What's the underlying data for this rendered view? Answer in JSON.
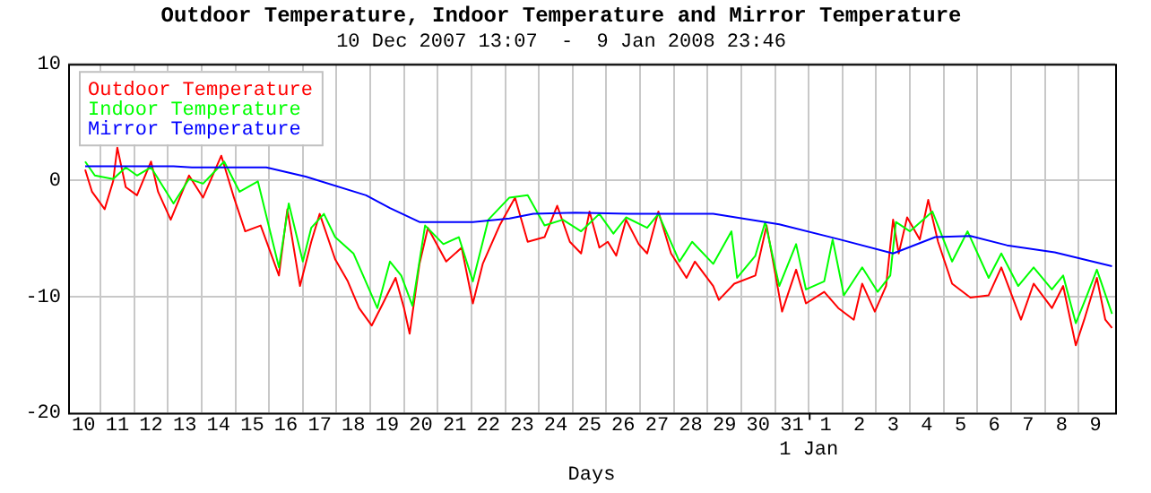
{
  "chart_data": {
    "type": "line",
    "title": "Outdoor Temperature, Indoor Temperature and Mirror Temperature",
    "subtitle": "10 Dec 2007 13:07  -  9 Jan 2008 23:46",
    "xlabel": "Days",
    "xlim": [
      "2007-12-10T01:00",
      "2008-01-10T02:00"
    ],
    "ylim": [
      -20,
      10
    ],
    "yticks": [
      -20,
      -10,
      0,
      10
    ],
    "xticks": [
      {
        "value": "2007-12-10T12:00",
        "label": "10"
      },
      {
        "value": "2007-12-11T12:00",
        "label": "11"
      },
      {
        "value": "2007-12-12T12:00",
        "label": "12"
      },
      {
        "value": "2007-12-13T12:00",
        "label": "13"
      },
      {
        "value": "2007-12-14T12:00",
        "label": "14"
      },
      {
        "value": "2007-12-15T12:00",
        "label": "15"
      },
      {
        "value": "2007-12-16T12:00",
        "label": "16"
      },
      {
        "value": "2007-12-17T12:00",
        "label": "17"
      },
      {
        "value": "2007-12-18T12:00",
        "label": "18"
      },
      {
        "value": "2007-12-19T12:00",
        "label": "19"
      },
      {
        "value": "2007-12-20T12:00",
        "label": "20"
      },
      {
        "value": "2007-12-21T12:00",
        "label": "21"
      },
      {
        "value": "2007-12-22T12:00",
        "label": "22"
      },
      {
        "value": "2007-12-23T12:00",
        "label": "23"
      },
      {
        "value": "2007-12-24T12:00",
        "label": "24"
      },
      {
        "value": "2007-12-25T12:00",
        "label": "25"
      },
      {
        "value": "2007-12-26T12:00",
        "label": "26"
      },
      {
        "value": "2007-12-27T12:00",
        "label": "27"
      },
      {
        "value": "2007-12-28T12:00",
        "label": "28"
      },
      {
        "value": "2007-12-29T12:00",
        "label": "29"
      },
      {
        "value": "2007-12-30T12:00",
        "label": "30"
      },
      {
        "value": "2007-12-31T12:00",
        "label": "31"
      },
      {
        "value": "2008-01-01T12:00",
        "label": "1"
      },
      {
        "value": "2008-01-02T12:00",
        "label": "2"
      },
      {
        "value": "2008-01-03T12:00",
        "label": "3"
      },
      {
        "value": "2008-01-04T12:00",
        "label": "4"
      },
      {
        "value": "2008-01-05T12:00",
        "label": "5"
      },
      {
        "value": "2008-01-06T12:00",
        "label": "6"
      },
      {
        "value": "2008-01-07T12:00",
        "label": "7"
      },
      {
        "value": "2008-01-08T12:00",
        "label": "8"
      },
      {
        "value": "2008-01-09T12:00",
        "label": "9"
      },
      {
        "value": "2007-12-11",
        "label": null
      },
      {
        "value": "2007-12-12",
        "label": null
      },
      {
        "value": "2007-12-13",
        "label": null
      },
      {
        "value": "2007-12-14",
        "label": null
      },
      {
        "value": "2007-12-15",
        "label": null
      },
      {
        "value": "2007-12-16",
        "label": null
      },
      {
        "value": "2007-12-17",
        "label": null
      },
      {
        "value": "2007-12-18",
        "label": null
      },
      {
        "value": "2007-12-19",
        "label": null
      },
      {
        "value": "2007-12-20",
        "label": null
      },
      {
        "value": "2007-12-21",
        "label": null
      },
      {
        "value": "2007-12-22",
        "label": null
      },
      {
        "value": "2007-12-23",
        "label": null
      },
      {
        "value": "2007-12-24",
        "label": null
      },
      {
        "value": "2007-12-25",
        "label": null
      },
      {
        "value": "2007-12-26",
        "label": null
      },
      {
        "value": "2007-12-27",
        "label": null
      },
      {
        "value": "2007-12-28",
        "label": null
      },
      {
        "value": "2007-12-29",
        "label": null
      },
      {
        "value": "2007-12-30",
        "label": null
      },
      {
        "value": "2007-12-31",
        "label": null
      },
      {
        "value": "2008-01-01",
        "label": null
      },
      {
        "value": "2008-01-02",
        "label": null
      },
      {
        "value": "2008-01-03",
        "label": null
      },
      {
        "value": "2008-01-04",
        "label": null
      },
      {
        "value": "2008-01-05",
        "label": null
      },
      {
        "value": "2008-01-06",
        "label": null
      },
      {
        "value": "2008-01-07",
        "label": null
      },
      {
        "value": "2008-01-08",
        "label": null
      },
      {
        "value": "2008-01-09",
        "label": null
      }
    ],
    "grid": true,
    "legend": "top left",
    "annotations": [
      "1 Jan"
    ],
    "series": [
      {
        "name": "Outdoor Temperature",
        "color": "#ff0000",
        "x": [
          "2007-12-10T13:07",
          "2007-12-10T18:00",
          "2007-12-11T03:00",
          "2007-12-11T09:00",
          "2007-12-11T12:00",
          "2007-12-11T18:00",
          "2007-12-12T02:00",
          "2007-12-12T12:00",
          "2007-12-12T17:00",
          "2007-12-13T02:00",
          "2007-12-13T15:00",
          "2007-12-14T01:00",
          "2007-12-14T14:00",
          "2007-12-14T23:00",
          "2007-12-15T07:00",
          "2007-12-15T18:00",
          "2007-12-16T07:00",
          "2007-12-16T13:00",
          "2007-12-16T22:00",
          "2007-12-17T06:00",
          "2007-12-17T12:00",
          "2007-12-17T23:00",
          "2007-12-18T08:00",
          "2007-12-18T16:00",
          "2007-12-19T01:00",
          "2007-12-19T09:00",
          "2007-12-19T18:00",
          "2007-12-20T00:00",
          "2007-12-20T04:00",
          "2007-12-20T11:00",
          "2007-12-20T17:00",
          "2007-12-21T06:00",
          "2007-12-21T17:00",
          "2007-12-22T01:00",
          "2007-12-22T08:00",
          "2007-12-22T20:00",
          "2007-12-23T07:00",
          "2007-12-23T16:00",
          "2007-12-24T04:00",
          "2007-12-24T13:00",
          "2007-12-24T22:00",
          "2007-12-25T06:00",
          "2007-12-25T12:00",
          "2007-12-25T19:00",
          "2007-12-26T01:00",
          "2007-12-26T07:00",
          "2007-12-26T14:00",
          "2007-12-26T23:00",
          "2007-12-27T05:00",
          "2007-12-27T13:00",
          "2007-12-27T22:00",
          "2007-12-28T09:00",
          "2007-12-28T15:00",
          "2007-12-29T04:00",
          "2007-12-29T08:00",
          "2007-12-29T19:00",
          "2007-12-30T10:00",
          "2007-12-30T18:00",
          "2007-12-31T05:00",
          "2007-12-31T15:00",
          "2007-12-31T22:00",
          "2008-01-01T11:00",
          "2008-01-01T21:00",
          "2008-01-02T08:00",
          "2008-01-02T14:00",
          "2008-01-02T23:00",
          "2008-01-03T07:00",
          "2008-01-03T12:00",
          "2008-01-03T16:00",
          "2008-01-03T22:00",
          "2008-01-04T07:00",
          "2008-01-04T13:00",
          "2008-01-04T20:00",
          "2008-01-05T06:00",
          "2008-01-05T19:00",
          "2008-01-06T08:00",
          "2008-01-06T17:00",
          "2008-01-07T07:00",
          "2008-01-07T16:00",
          "2008-01-08T05:00",
          "2008-01-08T13:00",
          "2008-01-08T22:00",
          "2008-01-09T04:00",
          "2008-01-09T13:00",
          "2008-01-09T19:00",
          "2008-01-09T23:46"
        ],
        "values": [
          0.9,
          -1.0,
          -2.5,
          -0.1,
          2.8,
          -0.6,
          -1.3,
          1.6,
          -1.0,
          -3.4,
          0.4,
          -1.5,
          2.1,
          -1.5,
          -4.4,
          -3.9,
          -8.2,
          -2.5,
          -9.1,
          -5.3,
          -2.9,
          -6.8,
          -8.7,
          -11.0,
          -12.5,
          -10.6,
          -8.4,
          -11.0,
          -13.2,
          -7.2,
          -4.1,
          -7.0,
          -5.8,
          -10.6,
          -7.2,
          -3.9,
          -1.5,
          -5.3,
          -4.9,
          -2.2,
          -5.3,
          -6.3,
          -2.7,
          -5.8,
          -5.3,
          -6.5,
          -3.4,
          -5.5,
          -6.3,
          -2.7,
          -6.3,
          -8.4,
          -7.0,
          -9.1,
          -10.3,
          -8.9,
          -8.2,
          -3.9,
          -11.3,
          -7.7,
          -10.6,
          -9.6,
          -11.0,
          -12.0,
          -8.9,
          -11.3,
          -9.1,
          -3.4,
          -6.3,
          -3.2,
          -5.1,
          -1.7,
          -5.3,
          -8.9,
          -10.1,
          -9.9,
          -7.5,
          -12.0,
          -8.9,
          -11.0,
          -9.1,
          -14.2,
          -12.0,
          -8.4,
          -12.0,
          -12.7
        ]
      },
      {
        "name": "Indoor Temperature",
        "color": "#00ff00",
        "x": [
          "2007-12-10T13:07",
          "2007-12-10T20:00",
          "2007-12-11T09:00",
          "2007-12-11T18:00",
          "2007-12-12T02:00",
          "2007-12-12T12:00",
          "2007-12-13T04:00",
          "2007-12-13T15:00",
          "2007-12-14T01:00",
          "2007-12-14T16:00",
          "2007-12-15T03:00",
          "2007-12-15T16:00",
          "2007-12-16T07:00",
          "2007-12-16T14:00",
          "2007-12-17T00:00",
          "2007-12-17T06:00",
          "2007-12-17T15:00",
          "2007-12-17T23:00",
          "2007-12-18T12:00",
          "2007-12-19T05:00",
          "2007-12-19T14:00",
          "2007-12-19T22:00",
          "2007-12-20T06:00",
          "2007-12-20T15:00",
          "2007-12-21T04:00",
          "2007-12-21T15:00",
          "2007-12-22T01:00",
          "2007-12-22T12:00",
          "2007-12-23T03:00",
          "2007-12-23T16:00",
          "2007-12-24T04:00",
          "2007-12-24T17:00",
          "2007-12-25T06:00",
          "2007-12-25T19:00",
          "2007-12-26T05:00",
          "2007-12-26T14:00",
          "2007-12-27T05:00",
          "2007-12-27T13:00",
          "2007-12-28T04:00",
          "2007-12-28T13:00",
          "2007-12-29T04:00",
          "2007-12-29T17:00",
          "2007-12-29T21:00",
          "2007-12-30T10:00",
          "2007-12-30T17:00",
          "2007-12-31T03:00",
          "2007-12-31T15:00",
          "2007-12-31T22:00",
          "2008-01-01T11:00",
          "2008-01-01T17:00",
          "2008-01-02T01:00",
          "2008-01-02T14:00",
          "2008-01-03T01:00",
          "2008-01-03T10:00",
          "2008-01-03T14:00",
          "2008-01-04T00:00",
          "2008-01-04T16:00",
          "2008-01-05T06:00",
          "2008-01-05T17:00",
          "2008-01-06T08:00",
          "2008-01-06T17:00",
          "2008-01-07T05:00",
          "2008-01-07T16:00",
          "2008-01-08T05:00",
          "2008-01-08T13:00",
          "2008-01-08T22:00",
          "2008-01-09T06:00",
          "2008-01-09T13:00",
          "2008-01-09T23:46"
        ],
        "values": [
          1.6,
          0.4,
          0.1,
          1.1,
          0.4,
          1.1,
          -2.0,
          0.1,
          -0.3,
          1.6,
          -1.0,
          -0.1,
          -7.5,
          -2.0,
          -7.0,
          -4.1,
          -2.9,
          -4.9,
          -6.3,
          -11.0,
          -7.0,
          -8.2,
          -10.8,
          -3.9,
          -5.5,
          -4.9,
          -8.7,
          -3.4,
          -1.5,
          -1.3,
          -3.9,
          -3.4,
          -4.4,
          -2.9,
          -4.6,
          -3.2,
          -4.1,
          -2.9,
          -7.0,
          -5.3,
          -7.2,
          -4.4,
          -8.4,
          -6.5,
          -3.6,
          -9.1,
          -5.5,
          -9.4,
          -8.7,
          -5.1,
          -9.9,
          -7.5,
          -9.6,
          -8.2,
          -3.6,
          -4.4,
          -2.7,
          -7.0,
          -4.4,
          -8.4,
          -6.3,
          -9.1,
          -7.5,
          -9.4,
          -8.2,
          -12.3,
          -9.9,
          -7.7,
          -11.5
        ]
      },
      {
        "name": "Mirror Temperature",
        "color": "#0000ff",
        "x": [
          "2007-12-10T13:07",
          "2007-12-13T04:00",
          "2007-12-13T17:00",
          "2007-12-15T22:00",
          "2007-12-17T02:00",
          "2007-12-18T21:00",
          "2007-12-19T14:00",
          "2007-12-20T11:00",
          "2007-12-22T01:00",
          "2007-12-23T03:00",
          "2007-12-23T20:00",
          "2007-12-25T02:00",
          "2007-12-26T16:00",
          "2007-12-29T04:00",
          "2007-12-31T03:00",
          "2008-01-01T22:00",
          "2008-01-03T12:00",
          "2008-01-04T18:00",
          "2008-01-05T19:00",
          "2008-01-06T21:00",
          "2008-01-08T07:00",
          "2008-01-09T23:46"
        ],
        "values": [
          1.2,
          1.2,
          1.1,
          1.1,
          0.3,
          -1.3,
          -2.4,
          -3.6,
          -3.6,
          -3.3,
          -2.9,
          -2.8,
          -2.9,
          -2.9,
          -3.8,
          -5.1,
          -6.3,
          -4.9,
          -4.8,
          -5.6,
          -6.2,
          -7.4
        ]
      }
    ]
  }
}
